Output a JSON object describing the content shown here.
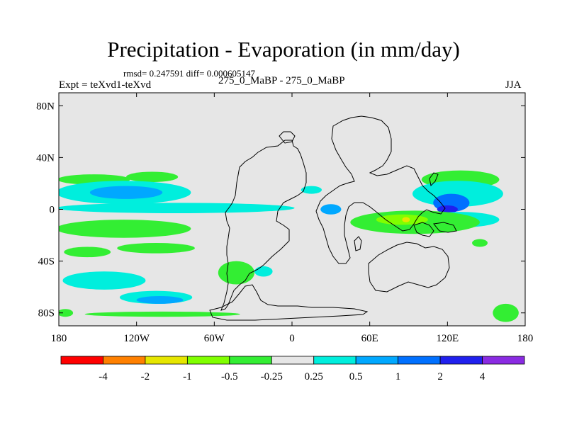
{
  "title": "Precipitation - Evaporation (in mm/day)",
  "stats_text": "rmsd= 0.247591 diff= 0.000605147",
  "experiment_label": "Expt = teXvd1-teXvd",
  "center_label": "275_0_MaBP - 275_0_MaBP",
  "season": "JJA",
  "chart_data": {
    "type": "heatmap",
    "projection": "cylindrical-equidistant",
    "variable": "Precipitation - Evaporation difference",
    "units": "mm/day",
    "xlim": [
      -180,
      180
    ],
    "ylim": [
      -90,
      90
    ],
    "xticks": [
      {
        "value": -180,
        "label": "180"
      },
      {
        "value": -120,
        "label": "120W"
      },
      {
        "value": -60,
        "label": "60W"
      },
      {
        "value": 0,
        "label": "0"
      },
      {
        "value": 60,
        "label": "60E"
      },
      {
        "value": 120,
        "label": "120E"
      },
      {
        "value": 180,
        "label": "180"
      }
    ],
    "yticks": [
      {
        "value": 80,
        "label": "80N"
      },
      {
        "value": 40,
        "label": "40N"
      },
      {
        "value": 0,
        "label": "0"
      },
      {
        "value": -40,
        "label": "40S"
      },
      {
        "value": -80,
        "label": "80S"
      }
    ],
    "colorbar": {
      "labels": [
        "-4",
        "-2",
        "-1",
        "-0.5",
        "-0.25",
        "0.25",
        "0.5",
        "1",
        "2",
        "4"
      ],
      "colors": [
        "#ff0000",
        "#ff8000",
        "#e6e600",
        "#80ff00",
        "#33ee33",
        "#e6e6e6",
        "#00eedd",
        "#00a8ff",
        "#0070ff",
        "#2020ee",
        "#8a2be2"
      ]
    },
    "regions": [
      {
        "category": 4,
        "lon": -153,
        "lat": 23,
        "rx": 28,
        "ry": 4
      },
      {
        "category": 4,
        "lon": -108,
        "lat": 25,
        "rx": 20,
        "ry": 4
      },
      {
        "category": 6,
        "lon": -130,
        "lat": 13,
        "rx": 52,
        "ry": 9
      },
      {
        "category": 7,
        "lon": -128,
        "lat": 13,
        "rx": 28,
        "ry": 5
      },
      {
        "category": 6,
        "lon": -90,
        "lat": 1,
        "rx": 92,
        "ry": 4
      },
      {
        "category": 4,
        "lon": -130,
        "lat": -15,
        "rx": 52,
        "ry": 7
      },
      {
        "category": 4,
        "lon": -105,
        "lat": -30,
        "rx": 30,
        "ry": 4
      },
      {
        "category": 4,
        "lon": -158,
        "lat": -33,
        "rx": 18,
        "ry": 4
      },
      {
        "category": 6,
        "lon": -145,
        "lat": -55,
        "rx": 32,
        "ry": 7
      },
      {
        "category": 6,
        "lon": -105,
        "lat": -68,
        "rx": 28,
        "ry": 5
      },
      {
        "category": 7,
        "lon": -102,
        "lat": -70,
        "rx": 18,
        "ry": 3
      },
      {
        "category": 4,
        "lon": -100,
        "lat": -81,
        "rx": 60,
        "ry": 2
      },
      {
        "category": 4,
        "lon": -43,
        "lat": -49,
        "rx": 14,
        "ry": 9
      },
      {
        "category": 6,
        "lon": -22,
        "lat": -48,
        "rx": 7,
        "ry": 4
      },
      {
        "category": 6,
        "lon": 15,
        "lat": 15,
        "rx": 8,
        "ry": 3
      },
      {
        "category": 7,
        "lon": 30,
        "lat": 0,
        "rx": 8,
        "ry": 4
      },
      {
        "category": 4,
        "lon": 130,
        "lat": 23,
        "rx": 30,
        "ry": 7
      },
      {
        "category": 6,
        "lon": 128,
        "lat": 12,
        "rx": 35,
        "ry": 10
      },
      {
        "category": 8,
        "lon": 123,
        "lat": 5,
        "rx": 14,
        "ry": 7
      },
      {
        "category": 9,
        "lon": 120,
        "lat": 0,
        "rx": 8,
        "ry": 3
      },
      {
        "category": 6,
        "lon": 130,
        "lat": -8,
        "rx": 30,
        "ry": 6
      },
      {
        "category": 4,
        "lon": 95,
        "lat": -10,
        "rx": 50,
        "ry": 9
      },
      {
        "category": 3,
        "lon": 85,
        "lat": -8,
        "rx": 20,
        "ry": 4
      },
      {
        "category": 2,
        "lon": 88,
        "lat": -8,
        "rx": 3,
        "ry": 2
      },
      {
        "category": 4,
        "lon": 145,
        "lat": -26,
        "rx": 6,
        "ry": 3
      },
      {
        "category": 4,
        "lon": 165,
        "lat": -80,
        "rx": 10,
        "ry": 7
      },
      {
        "category": 4,
        "lon": -175,
        "lat": -80,
        "rx": 6,
        "ry": 3
      }
    ]
  }
}
